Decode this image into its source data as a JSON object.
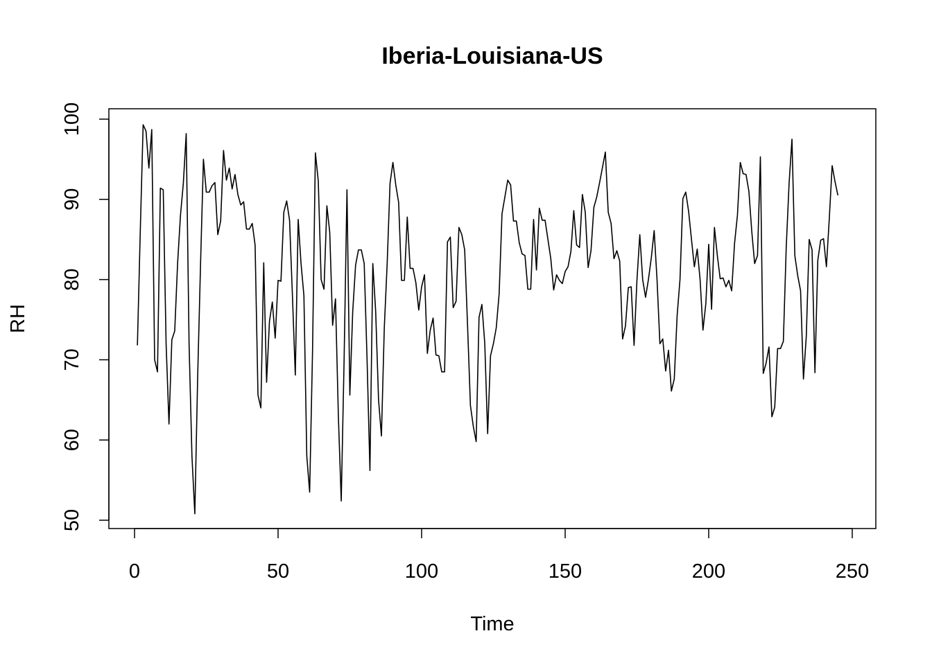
{
  "chart_data": {
    "type": "line",
    "title": "Iberia-Louisiana-US",
    "xlabel": "Time",
    "ylabel": "RH",
    "xlim": [
      0,
      250
    ],
    "ylim": [
      50,
      100
    ],
    "x_ticks": [
      "0",
      "50",
      "100",
      "150",
      "200",
      "250"
    ],
    "y_ticks": [
      "50",
      "60",
      "70",
      "80",
      "90",
      "100"
    ],
    "grid": false,
    "legend": "none",
    "line_color": "#000000",
    "series": [
      {
        "x_start": 1,
        "x_step": 1,
        "values": [
          71.8,
          86.0,
          99.3,
          98.5,
          93.9,
          98.7,
          70.0,
          68.5,
          91.4,
          91.2,
          72.0,
          62.0,
          72.5,
          73.6,
          82.0,
          88.0,
          92.0,
          98.2,
          72.0,
          58.0,
          50.8,
          68.0,
          82.0,
          95.0,
          90.9,
          90.9,
          91.7,
          92.1,
          85.6,
          87.3,
          96.1,
          92.4,
          93.9,
          91.3,
          93.1,
          90.6,
          89.3,
          89.7,
          86.3,
          86.3,
          87.0,
          84.3,
          65.6,
          64.0,
          82.1,
          67.2,
          74.8,
          77.2,
          72.7,
          79.9,
          79.8,
          88.4,
          89.8,
          87.4,
          78.0,
          68.1,
          87.5,
          82.0,
          78.0,
          58.0,
          53.5,
          71.0,
          95.8,
          92.3,
          80.0,
          78.8,
          89.2,
          85.9,
          74.3,
          77.6,
          63.0,
          52.4,
          70.0,
          91.2,
          65.6,
          76.0,
          81.8,
          83.7,
          83.7,
          82.0,
          70.0,
          56.2,
          82.0,
          76.0,
          65.0,
          60.5,
          74.0,
          82.0,
          92.0,
          94.6,
          91.8,
          89.6,
          79.9,
          79.9,
          87.8,
          81.4,
          81.4,
          79.6,
          76.2,
          79.1,
          80.6,
          70.8,
          73.7,
          75.2,
          70.6,
          70.5,
          68.5,
          68.5,
          84.7,
          85.3,
          76.5,
          77.3,
          86.5,
          85.6,
          83.7,
          74.3,
          64.3,
          61.7,
          59.8,
          75.3,
          76.9,
          72.0,
          60.8,
          70.5,
          72.0,
          74.0,
          78.2,
          88.2,
          90.3,
          92.4,
          91.8,
          87.3,
          87.3,
          84.6,
          83.2,
          83.0,
          78.8,
          78.8,
          87.5,
          81.2,
          88.9,
          87.4,
          87.4,
          85.0,
          82.6,
          78.7,
          80.6,
          79.9,
          79.5,
          81.0,
          81.6,
          83.5,
          88.6,
          84.3,
          84.0,
          90.6,
          88.4,
          81.5,
          83.6,
          89.0,
          90.3,
          92.1,
          94.0,
          95.9,
          88.4,
          87.0,
          82.6,
          83.6,
          82.3,
          72.6,
          74.2,
          79.0,
          79.1,
          71.8,
          79.9,
          85.6,
          80.0,
          77.8,
          80.0,
          82.7,
          86.1,
          80.0,
          72.0,
          72.6,
          68.6,
          71.2,
          66.1,
          67.6,
          75.5,
          80.0,
          90.1,
          90.9,
          88.5,
          85.0,
          81.6,
          83.8,
          80.0,
          73.7,
          77.0,
          84.4,
          76.3,
          86.5,
          83.0,
          80.1,
          80.2,
          79.1,
          79.9,
          78.6,
          84.5,
          88.0,
          94.6,
          93.2,
          93.1,
          91.0,
          86.0,
          82.0,
          83.0,
          95.3,
          68.3,
          69.6,
          71.6,
          62.9,
          64.1,
          71.4,
          71.4,
          72.3,
          84.0,
          92.0,
          97.5,
          83.0,
          80.5,
          78.6,
          67.6,
          73.0,
          85.0,
          83.7,
          68.4,
          82.4,
          84.9,
          85.1,
          81.6,
          87.6,
          94.2,
          92.2,
          90.5
        ]
      }
    ]
  }
}
